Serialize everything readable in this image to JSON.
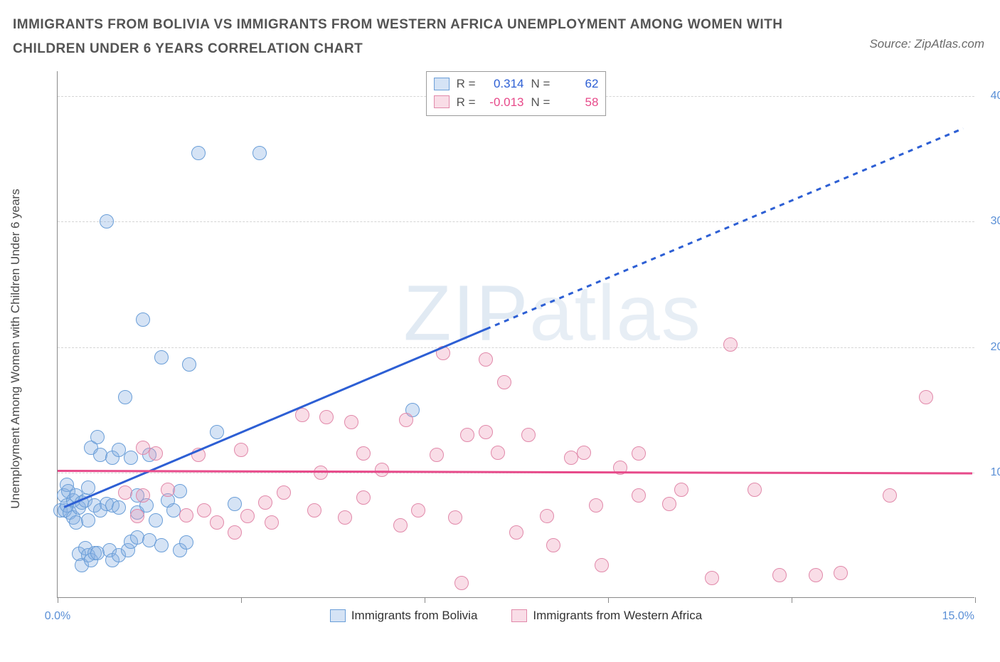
{
  "title": "IMMIGRANTS FROM BOLIVIA VS IMMIGRANTS FROM WESTERN AFRICA UNEMPLOYMENT AMONG WOMEN WITH CHILDREN UNDER 6 YEARS CORRELATION CHART",
  "source": "Source: ZipAtlas.com",
  "ylabel": "Unemployment Among Women with Children Under 6 years",
  "watermark_bold": "ZIP",
  "watermark_thin": "atlas",
  "chart": {
    "type": "scatter",
    "xlim": [
      0,
      15
    ],
    "ylim": [
      0,
      42
    ],
    "x_ticks": [
      0,
      3,
      6,
      9,
      12,
      15
    ],
    "x_tick_labels": {
      "0": "0.0%",
      "15": "15.0%"
    },
    "y_gridlines": [
      10,
      20,
      30,
      40
    ],
    "y_tick_labels": {
      "10": "10.0%",
      "20": "20.0%",
      "30": "30.0%",
      "40": "40.0%"
    },
    "grid_color": "#d5d5d5",
    "axis_color": "#8a8a8a",
    "tick_label_color": "#5a8fd6",
    "point_radius": 10,
    "point_border_width": 1.2,
    "series": [
      {
        "id": "bolivia",
        "label": "Immigrants from Bolivia",
        "fill": "rgba(135,175,225,0.35)",
        "stroke": "#6a9ed8",
        "R": "0.314",
        "N": "62",
        "trend": {
          "color": "#2d5fd4",
          "x1": 0.1,
          "y1": 7.3,
          "x2": 7.0,
          "y2": 21.5,
          "dash_x2": 14.8,
          "dash_y2": 37.5
        },
        "points": [
          [
            0.05,
            7.0
          ],
          [
            0.1,
            8.2
          ],
          [
            0.12,
            7.0
          ],
          [
            0.15,
            7.4
          ],
          [
            0.15,
            9.0
          ],
          [
            0.2,
            6.8
          ],
          [
            0.18,
            8.5
          ],
          [
            0.25,
            7.8
          ],
          [
            0.25,
            6.4
          ],
          [
            0.3,
            6.0
          ],
          [
            0.3,
            8.2
          ],
          [
            0.35,
            3.5
          ],
          [
            0.35,
            7.2
          ],
          [
            0.4,
            2.6
          ],
          [
            0.4,
            7.6
          ],
          [
            0.45,
            7.8
          ],
          [
            0.5,
            8.8
          ],
          [
            0.5,
            6.2
          ],
          [
            0.45,
            4.0
          ],
          [
            0.5,
            3.4
          ],
          [
            0.55,
            3.0
          ],
          [
            0.55,
            12.0
          ],
          [
            0.6,
            3.6
          ],
          [
            0.6,
            7.4
          ],
          [
            0.65,
            12.8
          ],
          [
            0.65,
            3.6
          ],
          [
            0.7,
            11.4
          ],
          [
            0.7,
            7.0
          ],
          [
            0.8,
            7.5
          ],
          [
            0.85,
            3.8
          ],
          [
            0.8,
            30.0
          ],
          [
            0.9,
            3.0
          ],
          [
            0.9,
            7.4
          ],
          [
            0.9,
            11.2
          ],
          [
            1.0,
            7.2
          ],
          [
            1.0,
            11.8
          ],
          [
            1.0,
            3.4
          ],
          [
            1.1,
            16.0
          ],
          [
            1.15,
            3.8
          ],
          [
            1.2,
            4.5
          ],
          [
            1.2,
            11.2
          ],
          [
            1.3,
            6.8
          ],
          [
            1.3,
            8.2
          ],
          [
            1.3,
            4.8
          ],
          [
            1.4,
            22.2
          ],
          [
            1.45,
            7.4
          ],
          [
            1.5,
            4.6
          ],
          [
            1.5,
            11.4
          ],
          [
            1.6,
            6.2
          ],
          [
            1.7,
            19.2
          ],
          [
            1.7,
            4.2
          ],
          [
            1.8,
            7.8
          ],
          [
            1.9,
            7.0
          ],
          [
            2.0,
            3.8
          ],
          [
            2.0,
            8.5
          ],
          [
            2.1,
            4.4
          ],
          [
            2.15,
            18.6
          ],
          [
            2.3,
            35.5
          ],
          [
            2.6,
            13.2
          ],
          [
            2.9,
            7.5
          ],
          [
            3.3,
            35.5
          ],
          [
            5.8,
            15.0
          ]
        ]
      },
      {
        "id": "westafrica",
        "label": "Immigrants from Western Africa",
        "fill": "rgba(235,150,180,0.32)",
        "stroke": "#e189aa",
        "R": "-0.013",
        "N": "58",
        "trend": {
          "color": "#e74a8a",
          "x1": 0.0,
          "y1": 10.2,
          "x2": 14.95,
          "y2": 10.0
        },
        "points": [
          [
            1.1,
            8.4
          ],
          [
            1.3,
            6.5
          ],
          [
            1.4,
            12.0
          ],
          [
            1.4,
            8.2
          ],
          [
            1.6,
            11.5
          ],
          [
            1.8,
            8.6
          ],
          [
            2.1,
            6.6
          ],
          [
            2.3,
            11.4
          ],
          [
            2.4,
            7.0
          ],
          [
            2.6,
            6.0
          ],
          [
            2.9,
            5.2
          ],
          [
            3.0,
            11.8
          ],
          [
            3.1,
            6.5
          ],
          [
            3.4,
            7.6
          ],
          [
            3.5,
            6.0
          ],
          [
            3.7,
            8.4
          ],
          [
            4.0,
            14.6
          ],
          [
            4.2,
            7.0
          ],
          [
            4.3,
            10.0
          ],
          [
            4.4,
            14.4
          ],
          [
            4.7,
            6.4
          ],
          [
            4.8,
            14.0
          ],
          [
            5.0,
            8.0
          ],
          [
            5.0,
            11.5
          ],
          [
            5.3,
            10.2
          ],
          [
            5.6,
            5.8
          ],
          [
            5.7,
            14.2
          ],
          [
            5.9,
            7.0
          ],
          [
            6.2,
            11.4
          ],
          [
            6.3,
            19.5
          ],
          [
            6.5,
            6.4
          ],
          [
            6.6,
            1.2
          ],
          [
            6.7,
            13.0
          ],
          [
            7.0,
            19.0
          ],
          [
            7.0,
            13.2
          ],
          [
            7.2,
            11.6
          ],
          [
            7.3,
            17.2
          ],
          [
            7.5,
            5.2
          ],
          [
            7.7,
            13.0
          ],
          [
            8.0,
            6.5
          ],
          [
            8.1,
            4.2
          ],
          [
            8.4,
            11.2
          ],
          [
            8.6,
            11.6
          ],
          [
            8.8,
            7.4
          ],
          [
            8.9,
            2.6
          ],
          [
            9.2,
            10.4
          ],
          [
            9.5,
            11.5
          ],
          [
            9.5,
            8.2
          ],
          [
            10.0,
            7.5
          ],
          [
            10.2,
            8.6
          ],
          [
            10.7,
            1.6
          ],
          [
            11.0,
            20.2
          ],
          [
            11.4,
            8.6
          ],
          [
            11.8,
            1.8
          ],
          [
            12.4,
            1.8
          ],
          [
            12.8,
            2.0
          ],
          [
            13.6,
            8.2
          ],
          [
            14.2,
            16.0
          ]
        ]
      }
    ]
  },
  "legend_stats_labels": {
    "R": "R =",
    "N": "N ="
  },
  "bottom_legend": {
    "items": [
      {
        "swatch_fill": "rgba(135,175,225,0.55)",
        "swatch_border": "#6a9ed8",
        "label_ref": 0
      },
      {
        "swatch_fill": "rgba(235,150,180,0.5)",
        "swatch_border": "#e189aa",
        "label_ref": 1
      }
    ]
  },
  "stat_value_colors": {
    "bolivia": "#2d5fd4",
    "westafrica": "#e74a8a"
  }
}
